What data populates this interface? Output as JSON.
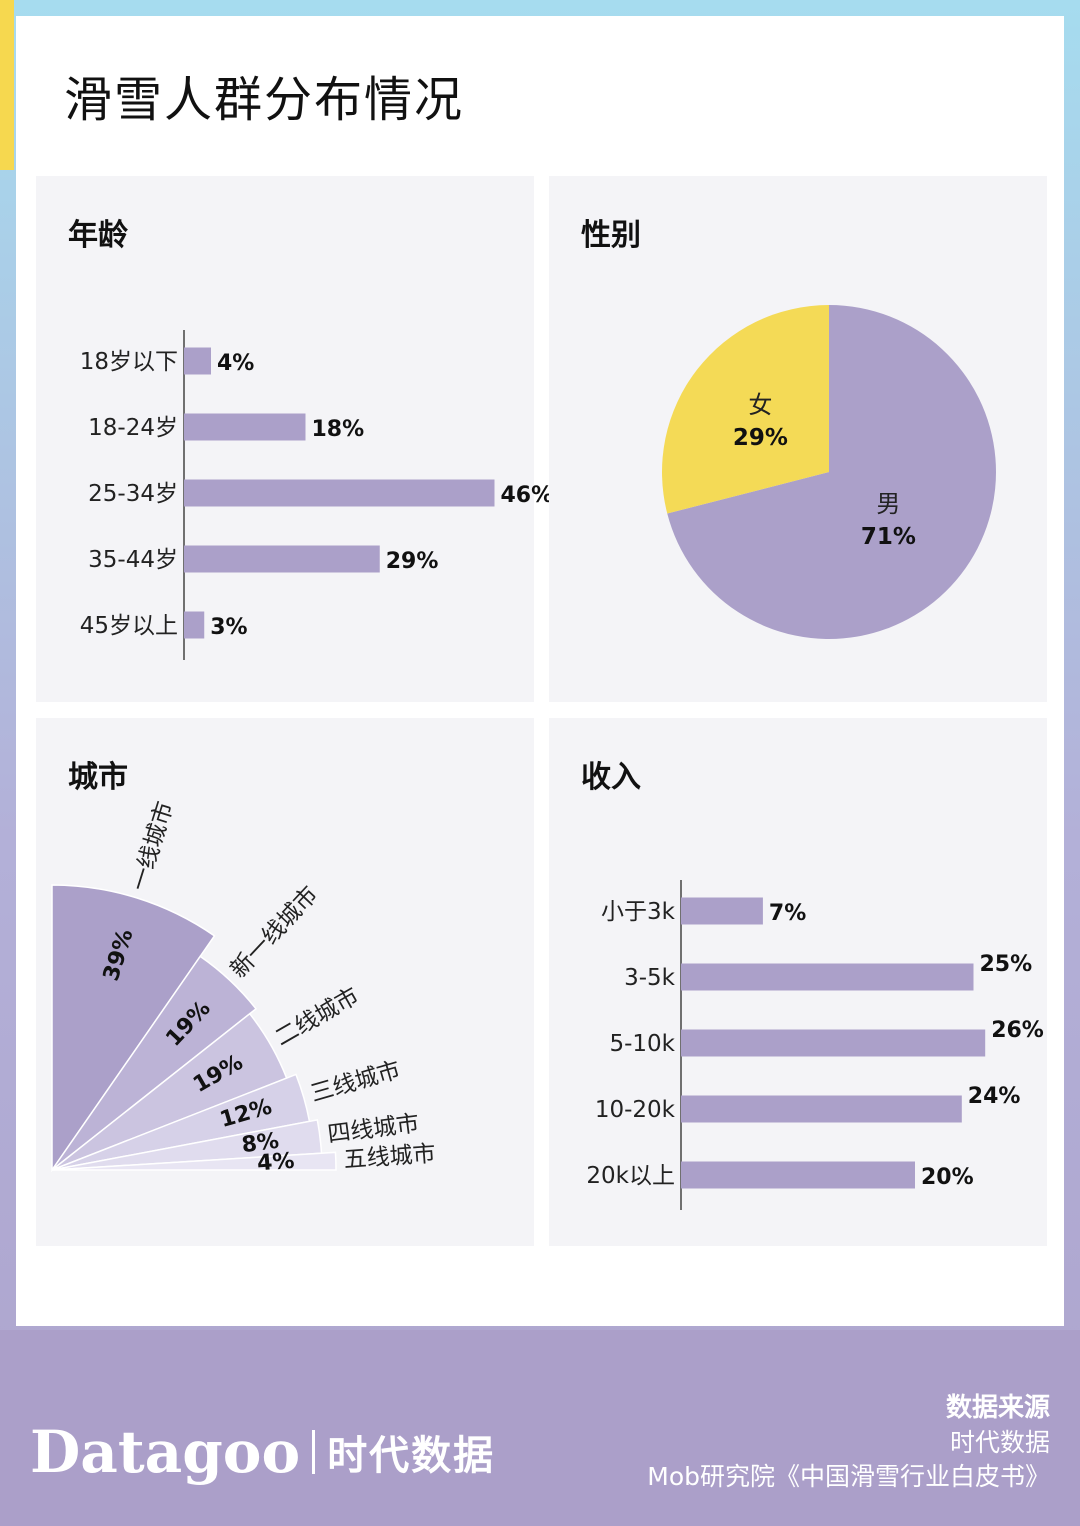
{
  "page": {
    "title": "滑雪人群分布情况"
  },
  "colors": {
    "purple": "#aba0c9",
    "yellow": "#f4da56",
    "panel_bg": "#f4f4f7",
    "footer_bg": "#ab9fc9"
  },
  "panels": {
    "age": "年龄",
    "gender": "性别",
    "city": "城市",
    "income": "收入"
  },
  "chart_data": [
    {
      "type": "bar",
      "orientation": "horizontal",
      "title": "年龄",
      "categories": [
        "18岁以下",
        "18-24岁",
        "25-34岁",
        "35-44岁",
        "45岁以上"
      ],
      "values": [
        4,
        18,
        46,
        29,
        3
      ],
      "labels": [
        "4%",
        "18%",
        "46%",
        "29%",
        "3%"
      ]
    },
    {
      "type": "pie",
      "title": "性别",
      "categories": [
        "男",
        "女"
      ],
      "values": [
        71,
        29
      ],
      "labels": [
        "71%",
        "29%"
      ],
      "colors": [
        "#aba0c9",
        "#f4da56"
      ]
    },
    {
      "type": "pie",
      "variant": "quarter-fan",
      "title": "城市",
      "categories": [
        "一线城市",
        "新一线城市",
        "二线城市",
        "三线城市",
        "四线城市",
        "五线城市"
      ],
      "values": [
        39,
        19,
        19,
        12,
        8,
        4
      ],
      "labels": [
        "39%",
        "19%",
        "19%",
        "12%",
        "8%",
        "4%"
      ],
      "colors": [
        "#aba0c9",
        "#bcb3d6",
        "#cbc4e0",
        "#d6d1e8",
        "#e0dcee",
        "#e8e5f3"
      ]
    },
    {
      "type": "bar",
      "orientation": "horizontal",
      "title": "收入",
      "categories": [
        "小于3k",
        "3-5k",
        "5-10k",
        "10-20k",
        "20k以上"
      ],
      "values": [
        7,
        25,
        26,
        24,
        20
      ],
      "labels": [
        "7%",
        "25%",
        "26%",
        "24%",
        "20%"
      ]
    }
  ],
  "footer": {
    "logo_en": "Datagoo",
    "logo_cn": "时代数据",
    "source_heading": "数据来源",
    "sources": [
      "时代数据",
      "Mob研究院《中国滑雪行业白皮书》"
    ]
  }
}
